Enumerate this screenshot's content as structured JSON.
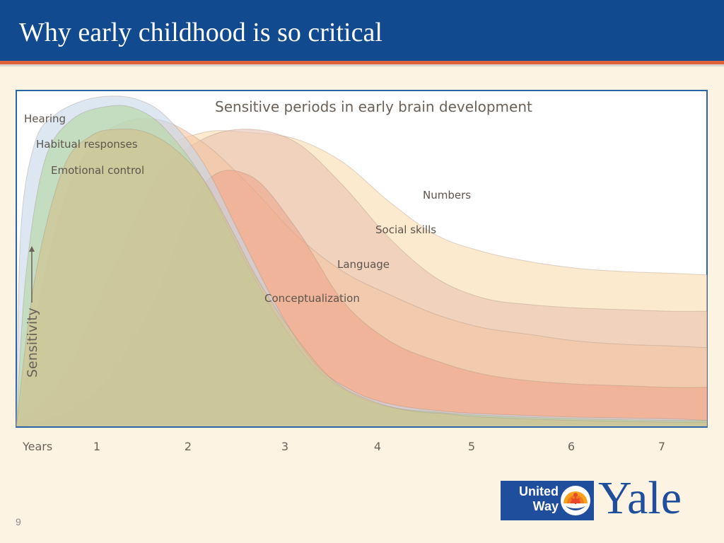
{
  "slide": {
    "title": "Why early childhood is so critical",
    "page_number": "9"
  },
  "logos": {
    "united_way": "United\nWay",
    "yale": "Yale"
  },
  "chart_data": {
    "type": "area",
    "title": "Sensitive periods in early brain development",
    "xlabel": "Years",
    "ylabel": "Sensitivity",
    "x_ticks": [
      1,
      2,
      3,
      4,
      5,
      6,
      7
    ],
    "xlim": [
      0,
      7.4
    ],
    "ylim": [
      0,
      1
    ],
    "grid": false,
    "legend": "none (series labelled directly on the chart)",
    "series": [
      {
        "name": "Numbers",
        "color": "#f9ddb0",
        "x": [
          0,
          0.5,
          1.0,
          1.5,
          2.0,
          2.5,
          3.0,
          3.5,
          4.0,
          4.5,
          5.0,
          5.5,
          6.0,
          6.5,
          7.0,
          7.4
        ],
        "y": [
          0.0,
          0.25,
          0.6,
          0.82,
          0.89,
          0.89,
          0.87,
          0.8,
          0.68,
          0.58,
          0.53,
          0.5,
          0.48,
          0.47,
          0.465,
          0.46
        ]
      },
      {
        "name": "Social skills",
        "color": "#e8c3b3",
        "x": [
          0,
          0.5,
          1.0,
          1.5,
          2.0,
          2.5,
          3.0,
          3.5,
          4.0,
          4.5,
          5.0,
          5.5,
          6.0,
          6.5,
          7.0,
          7.4
        ],
        "y": [
          0.0,
          0.15,
          0.45,
          0.75,
          0.87,
          0.9,
          0.86,
          0.73,
          0.57,
          0.45,
          0.39,
          0.37,
          0.36,
          0.355,
          0.35,
          0.35
        ]
      },
      {
        "name": "Language",
        "color": "#f3c6a4",
        "x": [
          0,
          0.3,
          0.6,
          1.0,
          1.5,
          2.0,
          2.5,
          3.0,
          3.5,
          4.0,
          4.5,
          5.0,
          5.5,
          6.0,
          6.5,
          7.0,
          7.4
        ],
        "y": [
          0.0,
          0.45,
          0.75,
          0.9,
          0.93,
          0.86,
          0.73,
          0.58,
          0.47,
          0.4,
          0.34,
          0.3,
          0.28,
          0.26,
          0.25,
          0.245,
          0.24
        ]
      },
      {
        "name": "Conceptualization",
        "color": "#eea68c",
        "x": [
          0,
          0.5,
          1.0,
          1.5,
          2.0,
          2.5,
          3.0,
          3.5,
          4.0,
          4.5,
          5.0,
          5.5,
          6.0,
          6.5,
          7.0,
          7.4
        ],
        "y": [
          0.0,
          0.04,
          0.15,
          0.4,
          0.73,
          0.76,
          0.6,
          0.38,
          0.26,
          0.2,
          0.16,
          0.14,
          0.13,
          0.125,
          0.12,
          0.12
        ]
      },
      {
        "name": "Hearing",
        "color": "#c7d9ea",
        "x": [
          0,
          0.05,
          0.2,
          0.4,
          0.7,
          1.0,
          1.3,
          1.6,
          2.0,
          2.4,
          2.8,
          3.2,
          3.6,
          4.0,
          4.5,
          5.0,
          6.0,
          7.0,
          7.4
        ],
        "y": [
          0.0,
          0.6,
          0.86,
          0.94,
          0.985,
          1.0,
          0.99,
          0.94,
          0.8,
          0.58,
          0.36,
          0.19,
          0.11,
          0.07,
          0.05,
          0.04,
          0.03,
          0.025,
          0.02
        ]
      },
      {
        "name": "Habitual responses",
        "color": "#b5d6a2",
        "x": [
          0,
          0.1,
          0.3,
          0.6,
          1.0,
          1.3,
          1.6,
          2.0,
          2.4,
          2.8,
          3.2,
          3.6,
          4.0,
          4.5,
          5.0,
          6.0,
          7.0,
          7.4
        ],
        "y": [
          0.0,
          0.45,
          0.8,
          0.93,
          0.97,
          0.96,
          0.9,
          0.75,
          0.53,
          0.33,
          0.18,
          0.1,
          0.06,
          0.045,
          0.035,
          0.025,
          0.02,
          0.02
        ]
      },
      {
        "name": "Emotional control",
        "color": "#d2c08c",
        "x": [
          0,
          0.2,
          0.5,
          0.8,
          1.1,
          1.4,
          1.7,
          2.0,
          2.3,
          2.6,
          3.0,
          3.4,
          3.8,
          4.2,
          4.6,
          5.0,
          6.0,
          7.0,
          7.4
        ],
        "y": [
          0.0,
          0.45,
          0.78,
          0.88,
          0.9,
          0.89,
          0.84,
          0.75,
          0.6,
          0.44,
          0.27,
          0.14,
          0.08,
          0.05,
          0.04,
          0.03,
          0.02,
          0.015,
          0.015
        ]
      }
    ]
  }
}
